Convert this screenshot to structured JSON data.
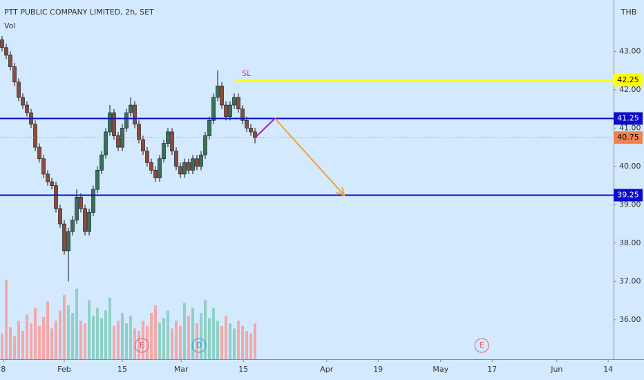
{
  "chart_data": {
    "type": "candlestick",
    "title": "PTT PUBLIC COMPANY LIMITED, 2h, SET",
    "volume_label": "Vol",
    "currency": "THB",
    "open": [
      43.3,
      43.1,
      42.9,
      42.6,
      42.2,
      41.8,
      41.6,
      41.4,
      41.1,
      40.5,
      40.2,
      39.8,
      39.6,
      39.5,
      38.9,
      38.5,
      37.8,
      38.3,
      38.6,
      39.2,
      38.9,
      38.3,
      38.8,
      39.4,
      39.9,
      40.3,
      40.9,
      41.4,
      40.8,
      40.5,
      41.0,
      41.4,
      41.6,
      41.1,
      40.7,
      40.4,
      40.1,
      39.9,
      39.7,
      40.2,
      40.6,
      40.9,
      40.4,
      40.0,
      39.8,
      40.1,
      39.9,
      40.2,
      40.0,
      40.3,
      40.8,
      41.2,
      41.8,
      42.1,
      41.6,
      41.3,
      41.6,
      41.8,
      41.5,
      41.2,
      41.0,
      40.9
    ],
    "high": [
      43.4,
      43.2,
      43.0,
      42.7,
      42.3,
      41.9,
      41.7,
      41.5,
      41.2,
      40.6,
      40.3,
      39.9,
      39.7,
      39.6,
      39.0,
      38.6,
      38.4,
      38.7,
      39.4,
      39.3,
      39.0,
      38.9,
      39.5,
      40.0,
      40.4,
      41.0,
      41.6,
      41.5,
      40.9,
      41.1,
      41.5,
      41.8,
      41.7,
      41.2,
      40.8,
      40.5,
      40.2,
      40.0,
      40.3,
      40.7,
      41.0,
      41.0,
      40.5,
      40.1,
      40.2,
      40.2,
      40.3,
      40.3,
      40.4,
      40.9,
      41.3,
      41.9,
      42.5,
      42.2,
      41.7,
      41.7,
      41.9,
      41.9,
      41.6,
      41.3,
      41.1,
      41.0
    ],
    "low": [
      43.0,
      42.8,
      42.5,
      42.1,
      41.7,
      41.5,
      41.3,
      41.0,
      40.4,
      40.1,
      39.7,
      39.5,
      39.4,
      38.8,
      38.4,
      37.7,
      37.0,
      38.2,
      38.5,
      38.8,
      38.2,
      38.2,
      38.7,
      39.3,
      39.8,
      40.2,
      40.8,
      40.7,
      40.4,
      40.4,
      40.9,
      41.3,
      41.0,
      40.6,
      40.3,
      40.0,
      39.8,
      39.6,
      39.6,
      40.1,
      40.5,
      40.3,
      39.9,
      39.7,
      39.7,
      39.8,
      39.8,
      39.9,
      39.9,
      40.2,
      40.7,
      41.1,
      41.7,
      41.5,
      41.2,
      41.2,
      41.5,
      41.4,
      41.1,
      40.9,
      40.8,
      40.6
    ],
    "close": [
      43.1,
      42.9,
      42.6,
      42.2,
      41.8,
      41.6,
      41.4,
      41.1,
      40.5,
      40.2,
      39.8,
      39.6,
      39.5,
      38.9,
      38.5,
      37.8,
      38.3,
      38.6,
      39.2,
      38.9,
      38.3,
      38.8,
      39.4,
      39.9,
      40.3,
      40.9,
      41.4,
      40.8,
      40.5,
      41.0,
      41.4,
      41.6,
      41.1,
      40.7,
      40.4,
      40.1,
      39.9,
      39.7,
      40.2,
      40.6,
      40.9,
      40.4,
      40.0,
      39.8,
      40.1,
      39.9,
      40.2,
      40.0,
      40.3,
      40.8,
      41.2,
      41.8,
      42.1,
      41.6,
      41.3,
      41.6,
      41.8,
      41.5,
      41.2,
      41.0,
      40.9,
      40.75
    ],
    "volume": [
      20,
      62,
      25,
      18,
      30,
      22,
      35,
      28,
      40,
      26,
      33,
      45,
      24,
      30,
      38,
      50,
      42,
      36,
      55,
      30,
      28,
      46,
      34,
      40,
      32,
      38,
      48,
      26,
      30,
      36,
      28,
      34,
      24,
      22,
      30,
      26,
      36,
      42,
      28,
      32,
      38,
      24,
      30,
      26,
      44,
      34,
      40,
      28,
      36,
      46,
      32,
      40,
      30,
      26,
      34,
      28,
      24,
      30,
      26,
      22,
      20,
      28
    ],
    "volume_ylim": [
      0,
      70
    ],
    "up_color": "#3b6e5c",
    "down_color": "#8e4b3c",
    "volume_up_color": "#8fd0c6",
    "volume_down_color": "#f3a9a9",
    "xlim": [
      -0.5,
      147.5
    ],
    "xticks": [
      {
        "value": 0.3,
        "label": "8"
      },
      {
        "value": 15,
        "label": "Feb"
      },
      {
        "value": 29,
        "label": "15"
      },
      {
        "value": 43.2,
        "label": "Mar"
      },
      {
        "value": 58.2,
        "label": "15"
      },
      {
        "value": 78.3,
        "label": "Apr"
      },
      {
        "value": 90.7,
        "label": "19"
      },
      {
        "value": 105.8,
        "label": "May"
      },
      {
        "value": 118.2,
        "label": "17"
      },
      {
        "value": 133.8,
        "label": "Jun"
      },
      {
        "value": 146.2,
        "label": "14"
      }
    ],
    "ylim": [
      34.97,
      44.34
    ],
    "yticks": [
      {
        "value": 36,
        "label": "36.00"
      },
      {
        "value": 37,
        "label": "37.00"
      },
      {
        "value": 38,
        "label": "38.00"
      },
      {
        "value": 39,
        "label": "39.00"
      },
      {
        "value": 40,
        "label": "40.00"
      },
      {
        "value": 41,
        "label": "41.00"
      },
      {
        "value": 42,
        "label": "42.00"
      },
      {
        "value": 43,
        "label": "43.00"
      }
    ],
    "levels": [
      {
        "value": 42.25,
        "label": "42.25",
        "color": "#ffff00",
        "text_color": "#000000",
        "from": 56.2,
        "style": "solid",
        "annotation": "SL",
        "annotation_color": "#e020c0"
      },
      {
        "value": 41.25,
        "label": "41.25",
        "color": "#0a0acc",
        "text_color": "#ffffff",
        "style": "solid"
      },
      {
        "value": 40.75,
        "label": "40.75",
        "color": "#f0824f",
        "text_color": "#000000",
        "style": "dotted"
      },
      {
        "value": 39.25,
        "label": "39.25",
        "color": "#0a0acc",
        "text_color": "#ffffff",
        "style": "solid"
      }
    ],
    "drawings": [
      {
        "x": [
          61,
          65.8
        ],
        "y": [
          40.75,
          41.25
        ],
        "color": "#a020b0"
      },
      {
        "x": [
          65.8,
          82.5
        ],
        "y": [
          41.25,
          39.25
        ],
        "color": "#f5a030"
      }
    ],
    "events": [
      {
        "x": 33.7,
        "label": "E",
        "color": "#e0606a"
      },
      {
        "x": 47.5,
        "label": "D",
        "color": "#2a9ad6"
      },
      {
        "x": 115.7,
        "label": "E",
        "color": "#e0606a"
      }
    ]
  }
}
